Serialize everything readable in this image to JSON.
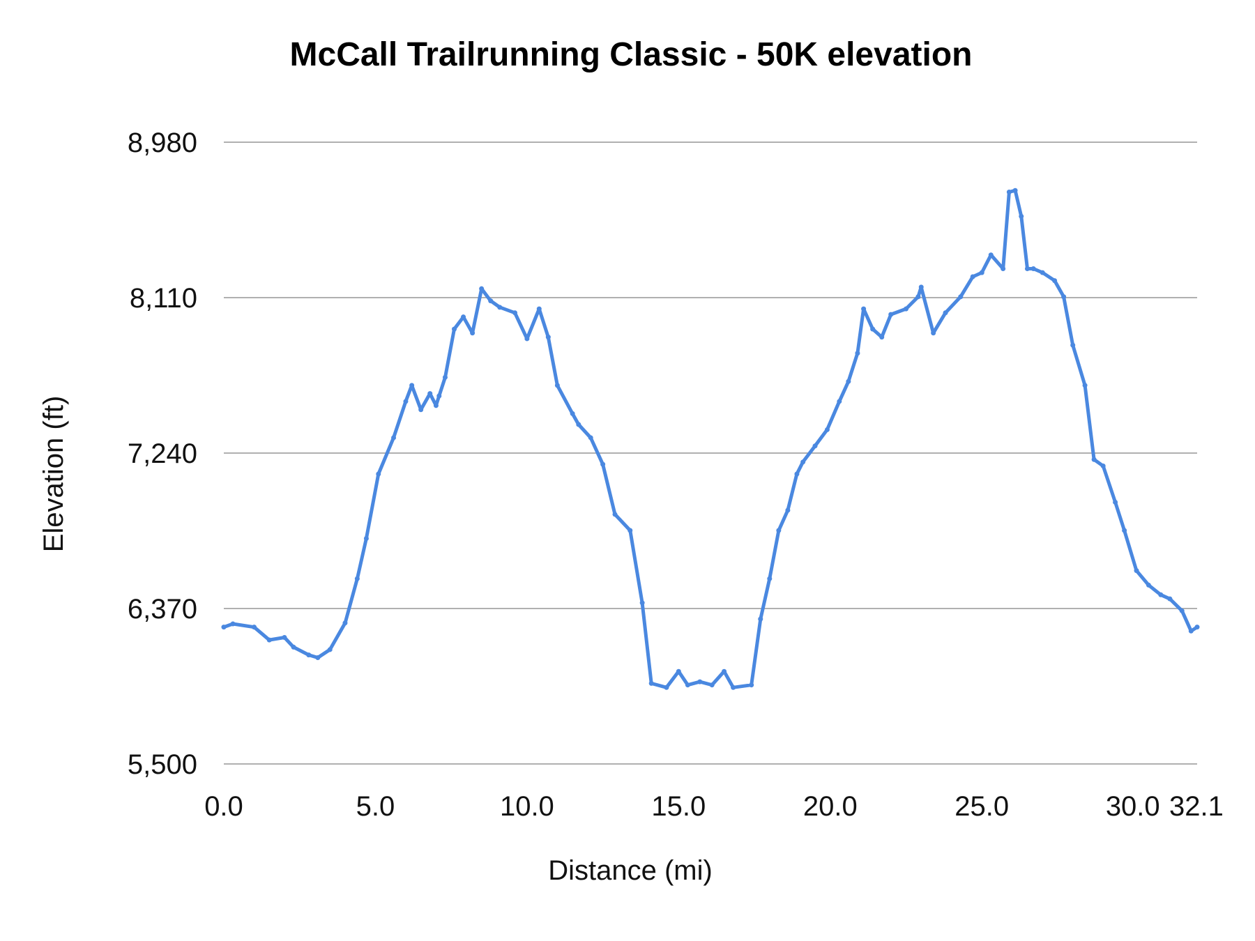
{
  "chart_data": {
    "type": "line",
    "title": "McCall Trailrunning  Classic - 50K elevation",
    "xlabel": "Distance (mi)",
    "ylabel": "Elevation (ft)",
    "xlim": [
      0,
      32.1
    ],
    "ylim": [
      5500,
      8980
    ],
    "xticks": [
      0,
      5,
      10,
      15,
      20,
      25,
      30,
      32.1
    ],
    "xtick_labels": [
      "0.0",
      "5.0",
      "10.0",
      "15.0",
      "20.0",
      "25.0",
      "30.0",
      "32.1"
    ],
    "yticks": [
      5500,
      6370,
      7240,
      8110,
      8980
    ],
    "ytick_labels": [
      "5,500",
      "6,370",
      "7,240",
      "8,110",
      "8,980"
    ],
    "grid": "horizontal",
    "legend": "none",
    "colors": {
      "line": "#4a88e0",
      "grid": "#b0b0b0"
    },
    "series": [
      {
        "x": [
          0,
          0.3,
          1.0,
          1.5,
          2.0,
          2.3,
          2.8,
          3.1,
          3.5,
          4.0,
          4.4,
          4.7,
          5.1,
          5.6,
          6.0,
          6.2,
          6.5,
          6.8,
          7.0,
          7.1,
          7.3,
          7.6,
          7.9,
          8.2,
          8.5,
          8.8,
          9.1,
          9.6,
          10.0,
          10.4,
          10.7,
          11.0,
          11.5,
          11.7,
          12.1,
          12.5,
          12.9,
          13.4,
          13.8,
          14.1,
          14.6,
          15.0,
          15.3,
          15.7,
          16.1,
          16.5,
          16.8,
          17.4,
          17.7,
          18.0,
          18.3,
          18.6,
          18.9,
          19.1,
          19.5,
          19.9,
          20.3,
          20.6,
          20.9,
          21.1,
          21.4,
          21.7,
          22.0,
          22.5,
          22.9,
          23.0,
          23.4,
          23.8,
          24.3,
          24.7,
          25.0,
          25.3,
          25.7,
          25.9,
          26.1,
          26.3,
          26.5,
          26.7,
          27.0,
          27.4,
          27.7,
          28.0,
          28.4,
          28.7,
          29.0,
          29.4,
          29.7,
          30.1,
          30.5,
          30.9,
          31.2,
          31.6,
          31.9,
          32.1
        ],
        "y": [
          6266,
          6284,
          6266,
          6194,
          6208,
          6154,
          6110,
          6095,
          6140,
          6289,
          6537,
          6762,
          7123,
          7326,
          7529,
          7619,
          7483,
          7573,
          7506,
          7560,
          7664,
          7934,
          8002,
          7912,
          8160,
          8092,
          8056,
          8025,
          7880,
          8047,
          7889,
          7619,
          7461,
          7400,
          7326,
          7177,
          6897,
          6807,
          6402,
          5951,
          5928,
          6018,
          5942,
          5960,
          5942,
          6018,
          5928,
          5942,
          6311,
          6537,
          6807,
          6920,
          7123,
          7190,
          7280,
          7371,
          7529,
          7641,
          7799,
          8047,
          7934,
          7889,
          8016,
          8047,
          8115,
          8169,
          7912,
          8025,
          8115,
          8227,
          8250,
          8349,
          8272,
          8701,
          8710,
          8565,
          8272,
          8272,
          8250,
          8205,
          8115,
          7844,
          7619,
          7204,
          7168,
          6965,
          6807,
          6582,
          6501,
          6447,
          6424,
          6357,
          6244,
          6266
        ]
      }
    ]
  }
}
